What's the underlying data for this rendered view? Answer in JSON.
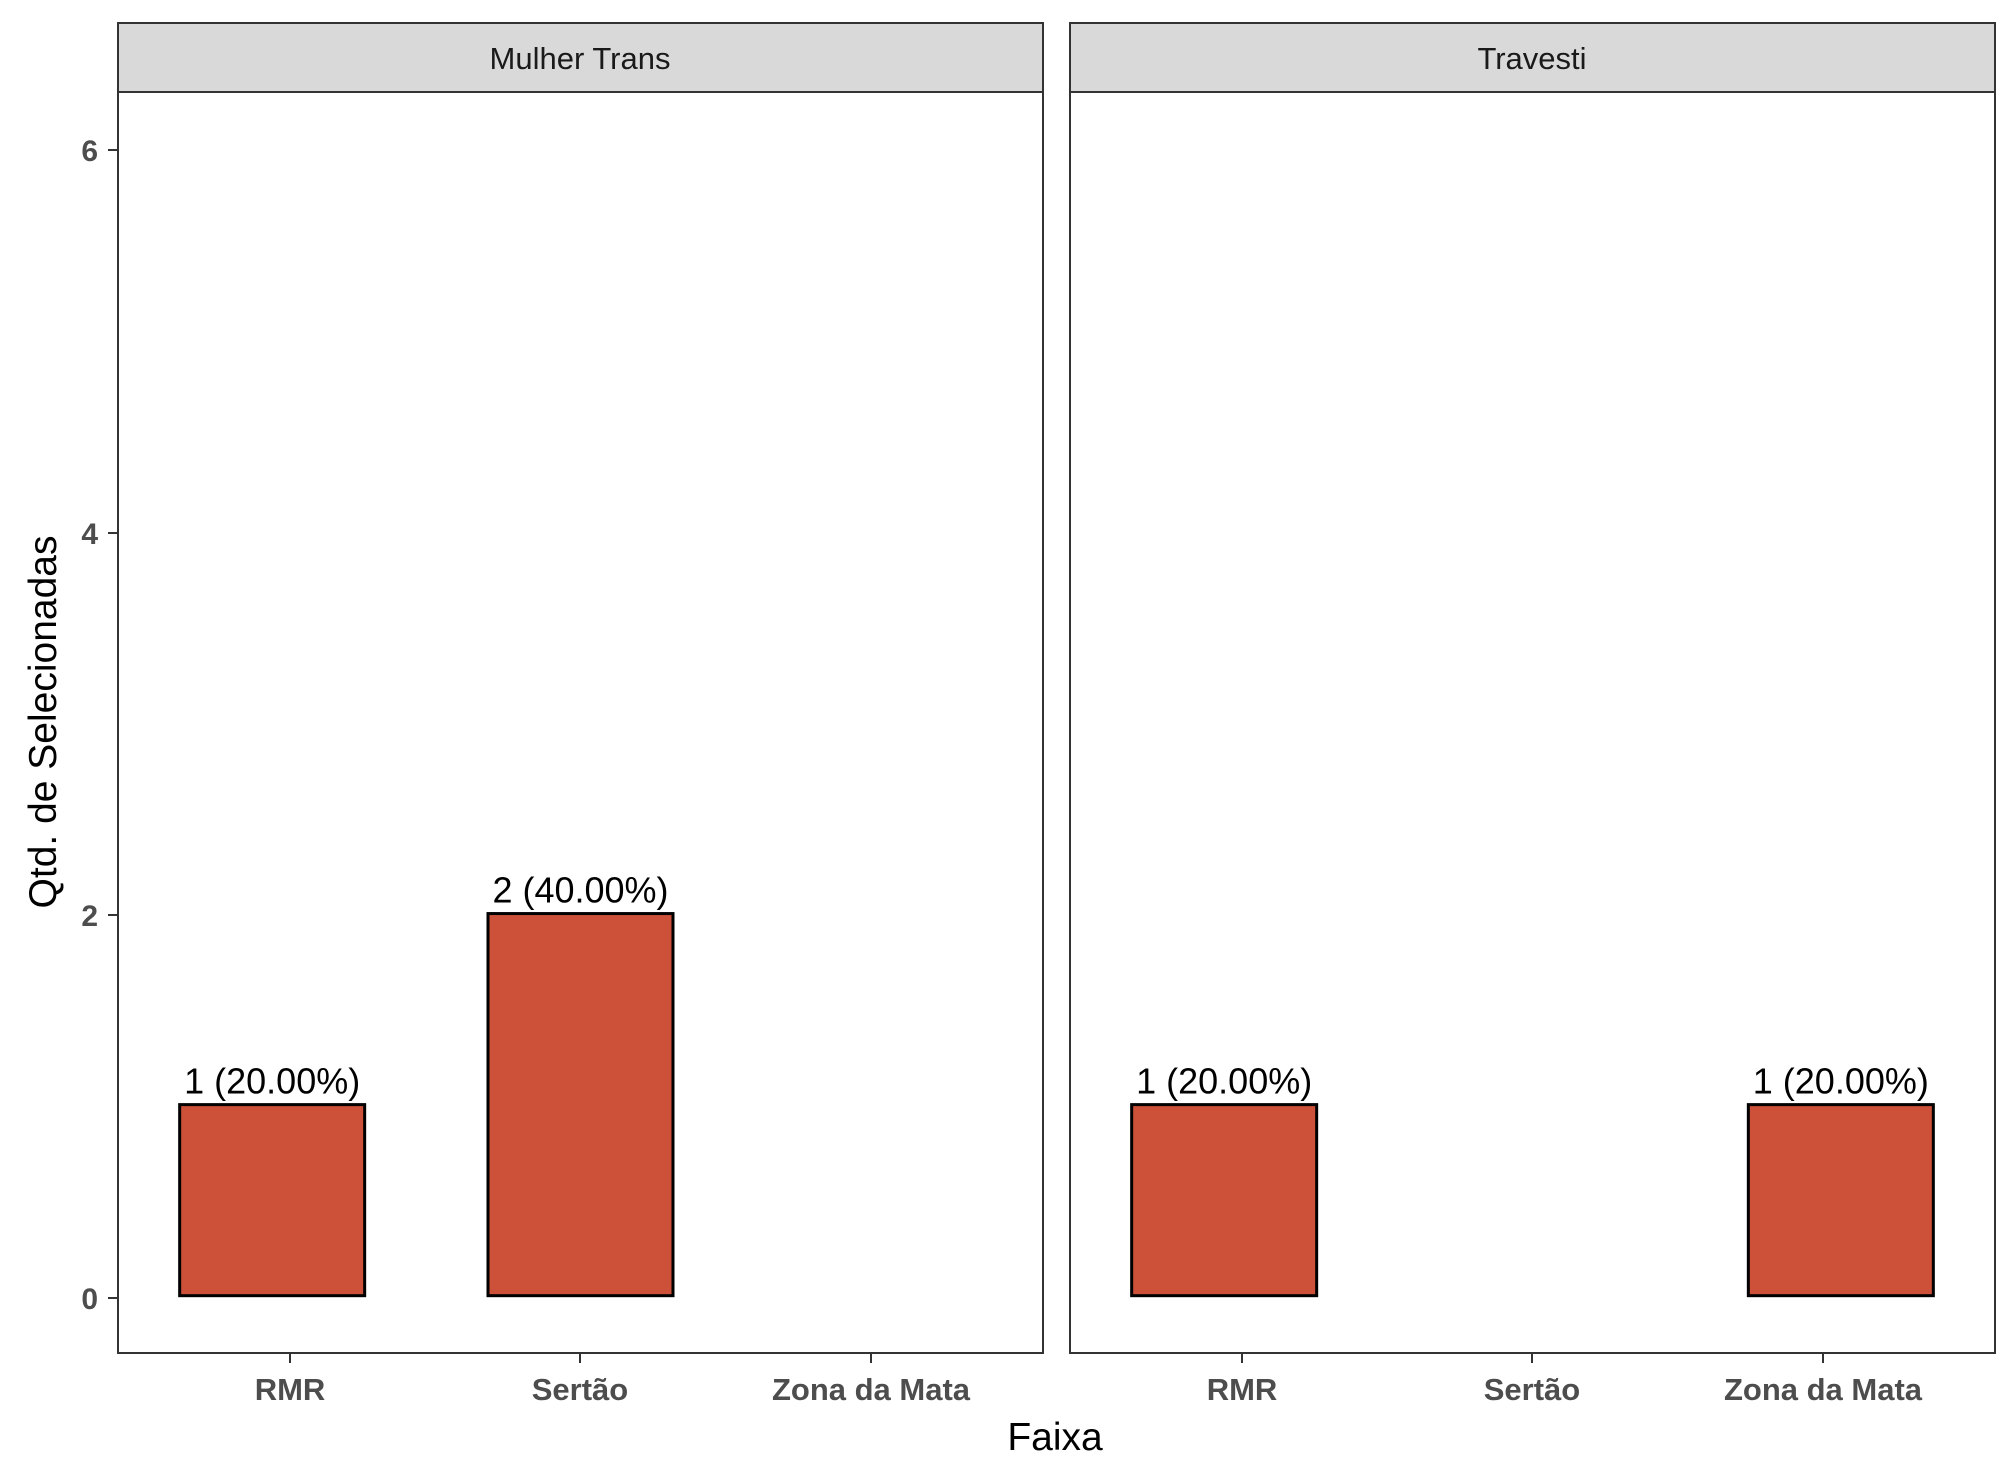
{
  "chart_data": {
    "type": "bar",
    "xlabel": "Faixa",
    "ylabel": "Qtd. de Selecionadas",
    "categories": [
      "RMR",
      "Sertão",
      "Zona da Mata"
    ],
    "yticks": [
      "0",
      "2",
      "4",
      "6"
    ],
    "ylim": [
      -0.3,
      6.3
    ],
    "grid": false,
    "legend": "none",
    "bar_color": "#CD5039",
    "facets": [
      {
        "name": "Mulher Trans",
        "values": [
          1,
          2,
          0
        ],
        "labels": [
          "1 (20.00%)",
          "2 (40.00%)",
          ""
        ]
      },
      {
        "name": "Travesti",
        "values": [
          1,
          0,
          1
        ],
        "labels": [
          "1 (20.00%)",
          "",
          "1 (20.00%)"
        ]
      }
    ]
  }
}
